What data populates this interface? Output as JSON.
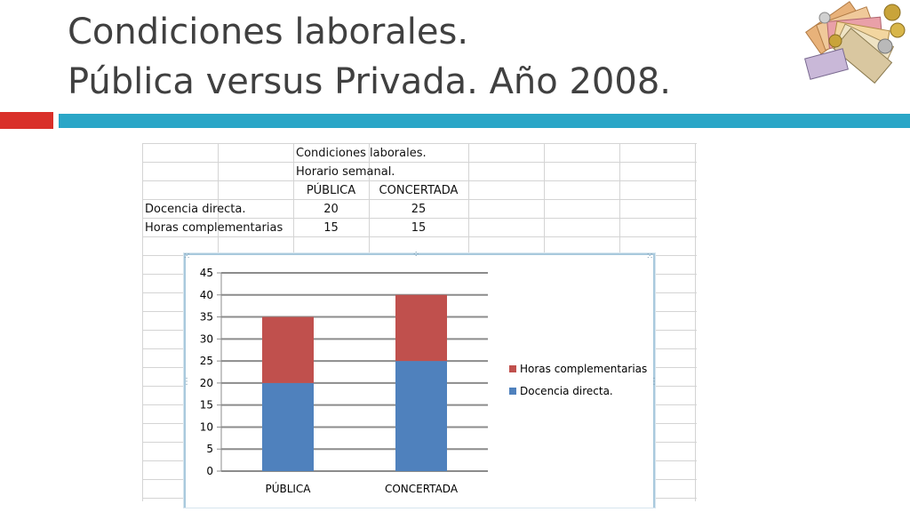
{
  "slide": {
    "title_line1": "Condiciones laborales.",
    "title_line2": "Pública versus Privada. Año 2008."
  },
  "colors": {
    "accent_red": "#d9302a",
    "accent_teal": "#2aa6c7",
    "series_blue": "#4f81bd",
    "series_red": "#c0504d"
  },
  "decorative_image": "euro-banknotes-and-coins",
  "sheet": {
    "title1": "Condiciones laborales.",
    "title2": "Horario semanal.",
    "col_publica": "PÚBLICA",
    "col_concertada": "CONCERTADA",
    "rows": [
      {
        "label": "Docencia directa.",
        "publica": "20",
        "concertada": "25"
      },
      {
        "label": "Horas complementarias",
        "publica": "15",
        "concertada": "15"
      }
    ]
  },
  "chart_data": {
    "type": "bar",
    "stacked": true,
    "categories": [
      "PÚBLICA",
      "CONCERTADA"
    ],
    "series": [
      {
        "name": "Docencia directa.",
        "values": [
          20,
          25
        ],
        "color": "#4f81bd"
      },
      {
        "name": "Horas complementarias",
        "values": [
          15,
          15
        ],
        "color": "#c0504d"
      }
    ],
    "ylim": [
      0,
      45
    ],
    "yticks": [
      0,
      5,
      10,
      15,
      20,
      25,
      30,
      35,
      40,
      45
    ],
    "grid": true,
    "legend": "right"
  }
}
